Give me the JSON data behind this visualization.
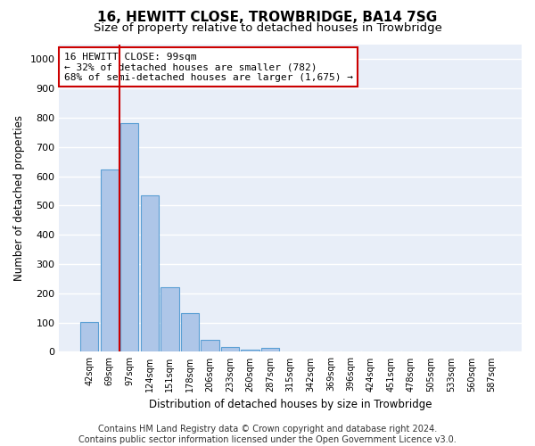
{
  "title": "16, HEWITT CLOSE, TROWBRIDGE, BA14 7SG",
  "subtitle": "Size of property relative to detached houses in Trowbridge",
  "xlabel": "Distribution of detached houses by size in Trowbridge",
  "ylabel": "Number of detached properties",
  "categories": [
    "42sqm",
    "69sqm",
    "97sqm",
    "124sqm",
    "151sqm",
    "178sqm",
    "206sqm",
    "233sqm",
    "260sqm",
    "287sqm",
    "315sqm",
    "342sqm",
    "369sqm",
    "396sqm",
    "424sqm",
    "451sqm",
    "478sqm",
    "505sqm",
    "533sqm",
    "560sqm",
    "587sqm"
  ],
  "bar_values": [
    103,
    622,
    783,
    535,
    220,
    133,
    42,
    16,
    8,
    12,
    0,
    0,
    0,
    0,
    0,
    0,
    0,
    0,
    0,
    0,
    0
  ],
  "bar_color": "#aec6e8",
  "bar_edge_color": "#5a9fd4",
  "vline_color": "#cc0000",
  "vline_x_index": 1.5,
  "annotation_box_text": "16 HEWITT CLOSE: 99sqm\n← 32% of detached houses are smaller (782)\n68% of semi-detached houses are larger (1,675) →",
  "box_edge_color": "#cc0000",
  "ylim": [
    0,
    1050
  ],
  "yticks": [
    0,
    100,
    200,
    300,
    400,
    500,
    600,
    700,
    800,
    900,
    1000
  ],
  "background_color": "#e8eef8",
  "grid_color": "#ffffff",
  "footer": "Contains HM Land Registry data © Crown copyright and database right 2024.\nContains public sector information licensed under the Open Government Licence v3.0.",
  "title_fontsize": 11,
  "subtitle_fontsize": 9.5,
  "xlabel_fontsize": 8.5,
  "ylabel_fontsize": 8.5,
  "tick_fontsize": 8,
  "annotation_fontsize": 8,
  "footer_fontsize": 7
}
